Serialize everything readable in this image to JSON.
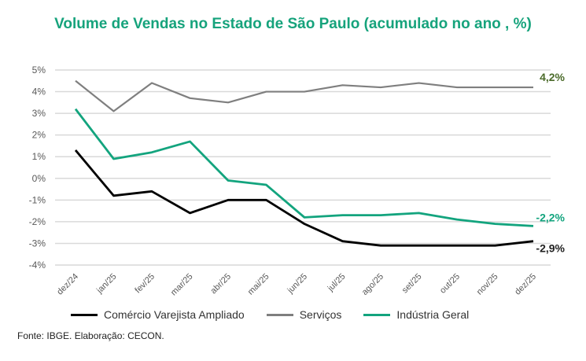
{
  "chart_data": {
    "type": "line",
    "title": "Volume de Vendas no Estado de São Paulo (acumulado no ano , %)",
    "categories": [
      "dez/24",
      "jan/25",
      "fev/25",
      "mar/25",
      "abr/25",
      "mai/25",
      "jun/25",
      "jul/25",
      "ago/25",
      "set/25",
      "out/25",
      "nov/25",
      "dez/25"
    ],
    "yticks": [
      "5%",
      "4%",
      "3%",
      "2%",
      "1%",
      "0%",
      "-1%",
      "-2%",
      "-3%",
      "-4%"
    ],
    "ylim": [
      -4,
      5
    ],
    "grid": true,
    "legend_position": "bottom",
    "series": [
      {
        "name": "Comércio Varejista Ampliado",
        "color": "#000000",
        "values": [
          1.3,
          -0.8,
          -0.6,
          -1.6,
          -1.0,
          -1.0,
          -2.1,
          -2.9,
          -3.1,
          -3.1,
          -3.1,
          -3.1,
          -2.9
        ],
        "end_label": "-2,9%",
        "label_color": "#222222"
      },
      {
        "name": "Serviços",
        "color": "#7f7f7f",
        "values": [
          4.5,
          3.1,
          4.4,
          3.7,
          3.5,
          4.0,
          4.0,
          4.3,
          4.2,
          4.4,
          4.2,
          4.2,
          4.2
        ],
        "end_label": "4,2%",
        "label_color": "#4b6b2a"
      },
      {
        "name": "Indústria Geral",
        "color": "#13a47e",
        "values": [
          3.2,
          0.9,
          1.2,
          1.7,
          -0.1,
          -0.3,
          -1.8,
          -1.7,
          -1.7,
          -1.6,
          -1.9,
          -2.1,
          -2.2
        ],
        "end_label": "-2,2%",
        "label_color": "#13a47e"
      }
    ]
  },
  "source": "Fonte: IBGE. Elaboração: CECON."
}
